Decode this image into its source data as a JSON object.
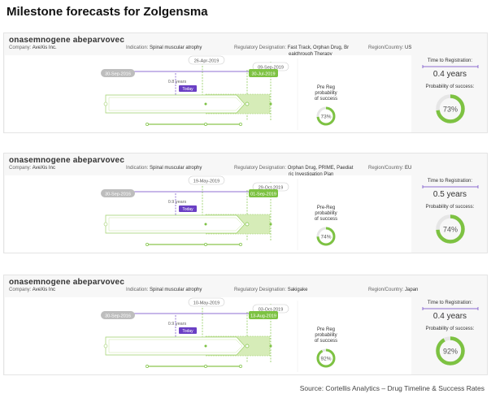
{
  "page_title": "Milestone forecasts for Zolgensma",
  "source_note": "Source: Cortellis Analytics – Drug Timeline & Success Rates",
  "labels": {
    "company": "Company:",
    "indication": "Indication:",
    "regulatory": "Regulatory Designation:",
    "region": "Region/Country:",
    "time_to_registration": "Time to Registration:",
    "probability_of_success": "Probability of success:",
    "today": "Today"
  },
  "colors": {
    "green": "#7dc242",
    "light_green": "#d6ecb8",
    "purple": "#6a3fc4",
    "grey_pill": "#bdbdbd"
  },
  "cards": [
    {
      "drug_name": "onasemnogene abeparvovec",
      "company": "AveXis Inc.",
      "indication": "Spinal muscular atrophy",
      "regulatory_line1": "Fast Track, Orphan Drug, Br",
      "regulatory_line2": "eakthrough Therapy",
      "region": "US",
      "start_date": "30-Sep-2016",
      "date_top": "26-Apr-2019",
      "date_mid_top": "09-Sep-2019",
      "end_date": "30-Jul-2019",
      "years_label": "0.8 years",
      "prereg_l1": "Pre Reg",
      "prereg_l2": "probability",
      "prereg_l3": "of success",
      "prereg_pct": "73%",
      "prereg_value": 0.73,
      "time_years": "0.4 years",
      "success_pct": "73%",
      "success_value": 0.73
    },
    {
      "drug_name": "onasemnogene abeparvovec",
      "company": "AveXis Inc",
      "indication": "Spinal muscular atrophy",
      "regulatory_line1": "Orphan Drug, PRIME, Paediat",
      "regulatory_line2": "ric Investigation Plan",
      "region": "EU",
      "start_date": "30-Sep-2016",
      "date_top": "19-May-2019",
      "date_mid_top": "29-Oct-2019",
      "end_date": "01-Sep-2019",
      "years_label": "0.9 years",
      "prereg_l1": "Pre-Reg",
      "prereg_l2": "probability",
      "prereg_l3": "of success",
      "prereg_pct": "74%",
      "prereg_value": 0.74,
      "time_years": "0.5 years",
      "success_pct": "74%",
      "success_value": 0.74
    },
    {
      "drug_name": "onasemnogene abeparvovec",
      "company": "AveXis Inc",
      "indication": "Spinal muscular atrophy",
      "regulatory_line1": "Sakigake",
      "regulatory_line2": "",
      "region": "Japan",
      "start_date": "30-Sep-2016",
      "date_top": "10-May-2019",
      "date_mid_top": "03-Oct-2019",
      "end_date": "13-Aug-2019",
      "years_label": "0.9 years",
      "prereg_l1": "Pre Reg",
      "prereg_l2": "probability",
      "prereg_l3": "of success",
      "prereg_pct": "92%",
      "prereg_value": 0.92,
      "time_years": "0.4 years",
      "success_pct": "92%",
      "success_value": 0.92
    }
  ]
}
